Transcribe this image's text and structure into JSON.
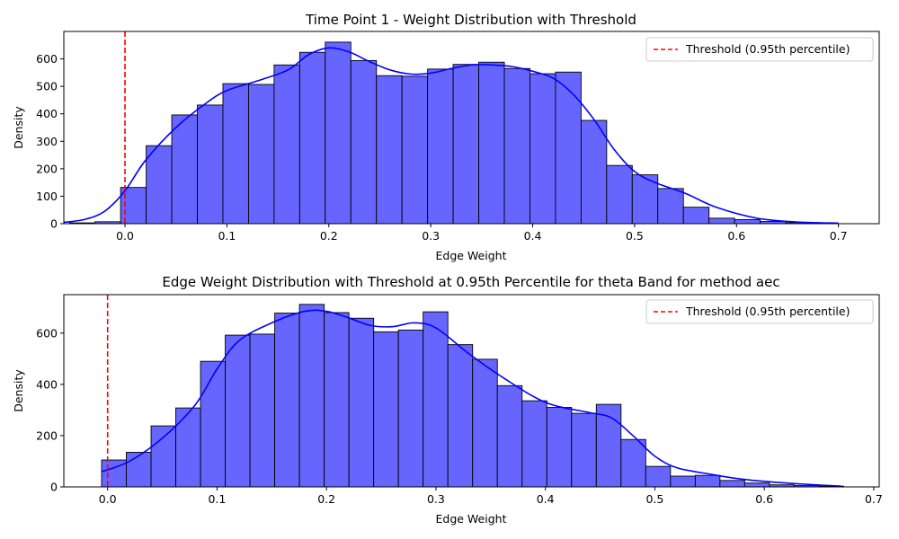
{
  "chart_data": [
    {
      "type": "bar",
      "title": "Time Point 1 - Weight Distribution with Threshold",
      "xlabel": "Edge Weight",
      "ylabel": "Density",
      "xlim": [
        -0.06,
        0.74
      ],
      "ylim": [
        0,
        700
      ],
      "xticks": [
        0.0,
        0.1,
        0.2,
        0.3,
        0.4,
        0.5,
        0.6,
        0.7
      ],
      "xtick_labels": [
        "0.0",
        "0.1",
        "0.2",
        "0.3",
        "0.4",
        "0.5",
        "0.6",
        "0.7"
      ],
      "yticks": [
        0,
        100,
        200,
        300,
        400,
        500,
        600
      ],
      "ytick_labels": [
        "0",
        "100",
        "200",
        "300",
        "400",
        "500",
        "600"
      ],
      "bin_start": -0.0545,
      "bin_width": 0.0251,
      "values": [
        3,
        7,
        132,
        284,
        396,
        432,
        510,
        507,
        578,
        624,
        661,
        594,
        539,
        537,
        563,
        580,
        588,
        565,
        546,
        552,
        376,
        212,
        178,
        128,
        60,
        20,
        15,
        8,
        4,
        3
      ],
      "kde_x": [
        -0.06,
        -0.04,
        -0.02,
        0.0,
        0.02,
        0.05,
        0.08,
        0.1,
        0.13,
        0.16,
        0.18,
        0.2,
        0.22,
        0.24,
        0.26,
        0.28,
        0.3,
        0.32,
        0.34,
        0.36,
        0.38,
        0.4,
        0.42,
        0.44,
        0.46,
        0.48,
        0.5,
        0.52,
        0.55,
        0.58,
        0.62,
        0.66,
        0.7
      ],
      "kde_y": [
        5,
        15,
        45,
        120,
        230,
        350,
        440,
        485,
        520,
        560,
        615,
        640,
        625,
        590,
        560,
        545,
        548,
        565,
        578,
        578,
        572,
        555,
        530,
        470,
        380,
        270,
        190,
        150,
        110,
        60,
        20,
        6,
        2
      ],
      "threshold": 0.0,
      "legend": [
        {
          "label": "Threshold (0.95th percentile)",
          "color": "#ff0000",
          "style": "dashed"
        }
      ],
      "legend_position": "upper right",
      "bar_color": "#6666ff",
      "kde_color": "#0000ff"
    },
    {
      "type": "bar",
      "title": "Edge Weight Distribution with Threshold at 0.95th Percentile for theta Band for method aec",
      "xlabel": "Edge Weight",
      "ylabel": "Density",
      "xlim": [
        -0.04,
        0.705
      ],
      "ylim": [
        0,
        750
      ],
      "xticks": [
        0.0,
        0.1,
        0.2,
        0.3,
        0.4,
        0.5,
        0.6,
        0.7
      ],
      "xtick_labels": [
        "0.0",
        "0.1",
        "0.2",
        "0.3",
        "0.4",
        "0.5",
        "0.6",
        "0.7"
      ],
      "yticks": [
        0,
        200,
        400,
        600
      ],
      "ytick_labels": [
        "0",
        "200",
        "400",
        "600"
      ],
      "bin_start": -0.0055,
      "bin_width": 0.0226,
      "values": [
        105,
        135,
        238,
        308,
        490,
        592,
        596,
        678,
        712,
        680,
        658,
        605,
        612,
        683,
        555,
        498,
        395,
        336,
        310,
        287,
        322,
        185,
        80,
        42,
        45,
        25,
        15,
        8,
        5,
        3
      ],
      "kde_x": [
        -0.005,
        0.02,
        0.05,
        0.08,
        0.1,
        0.12,
        0.15,
        0.18,
        0.2,
        0.22,
        0.24,
        0.26,
        0.28,
        0.3,
        0.33,
        0.36,
        0.4,
        0.44,
        0.46,
        0.48,
        0.5,
        0.52,
        0.55,
        0.58,
        0.62,
        0.67
      ],
      "kde_y": [
        60,
        100,
        190,
        320,
        460,
        570,
        640,
        685,
        685,
        660,
        630,
        625,
        640,
        620,
        520,
        430,
        330,
        290,
        270,
        200,
        120,
        75,
        50,
        30,
        15,
        3
      ],
      "threshold": 0.0,
      "legend": [
        {
          "label": "Threshold (0.95th percentile)",
          "color": "#ff0000",
          "style": "dashed"
        }
      ],
      "legend_position": "upper right",
      "bar_color": "#6666ff",
      "kde_color": "#0000ff"
    }
  ]
}
